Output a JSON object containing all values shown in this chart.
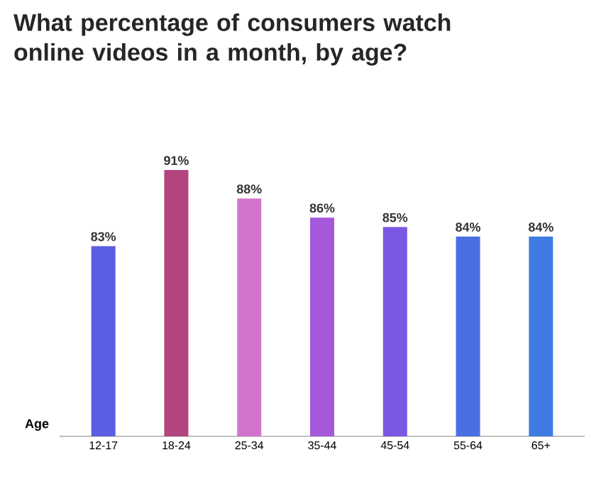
{
  "chart_data": {
    "type": "bar",
    "title": "What percentage of consumers watch online videos in a month, by age?",
    "xlabel": "Age",
    "categories": [
      "12-17",
      "18-24",
      "25-34",
      "35-44",
      "45-54",
      "55-64",
      "65+"
    ],
    "values": [
      83,
      91,
      88,
      86,
      85,
      84,
      84
    ],
    "value_labels": [
      "83%",
      "91%",
      "88%",
      "86%",
      "85%",
      "84%",
      "84%"
    ],
    "colors": [
      "#5b5de2",
      "#b2447e",
      "#d274cc",
      "#a658da",
      "#7a58e2",
      "#4a6fe2",
      "#3f7be2"
    ],
    "ylim": [
      63,
      91
    ]
  }
}
